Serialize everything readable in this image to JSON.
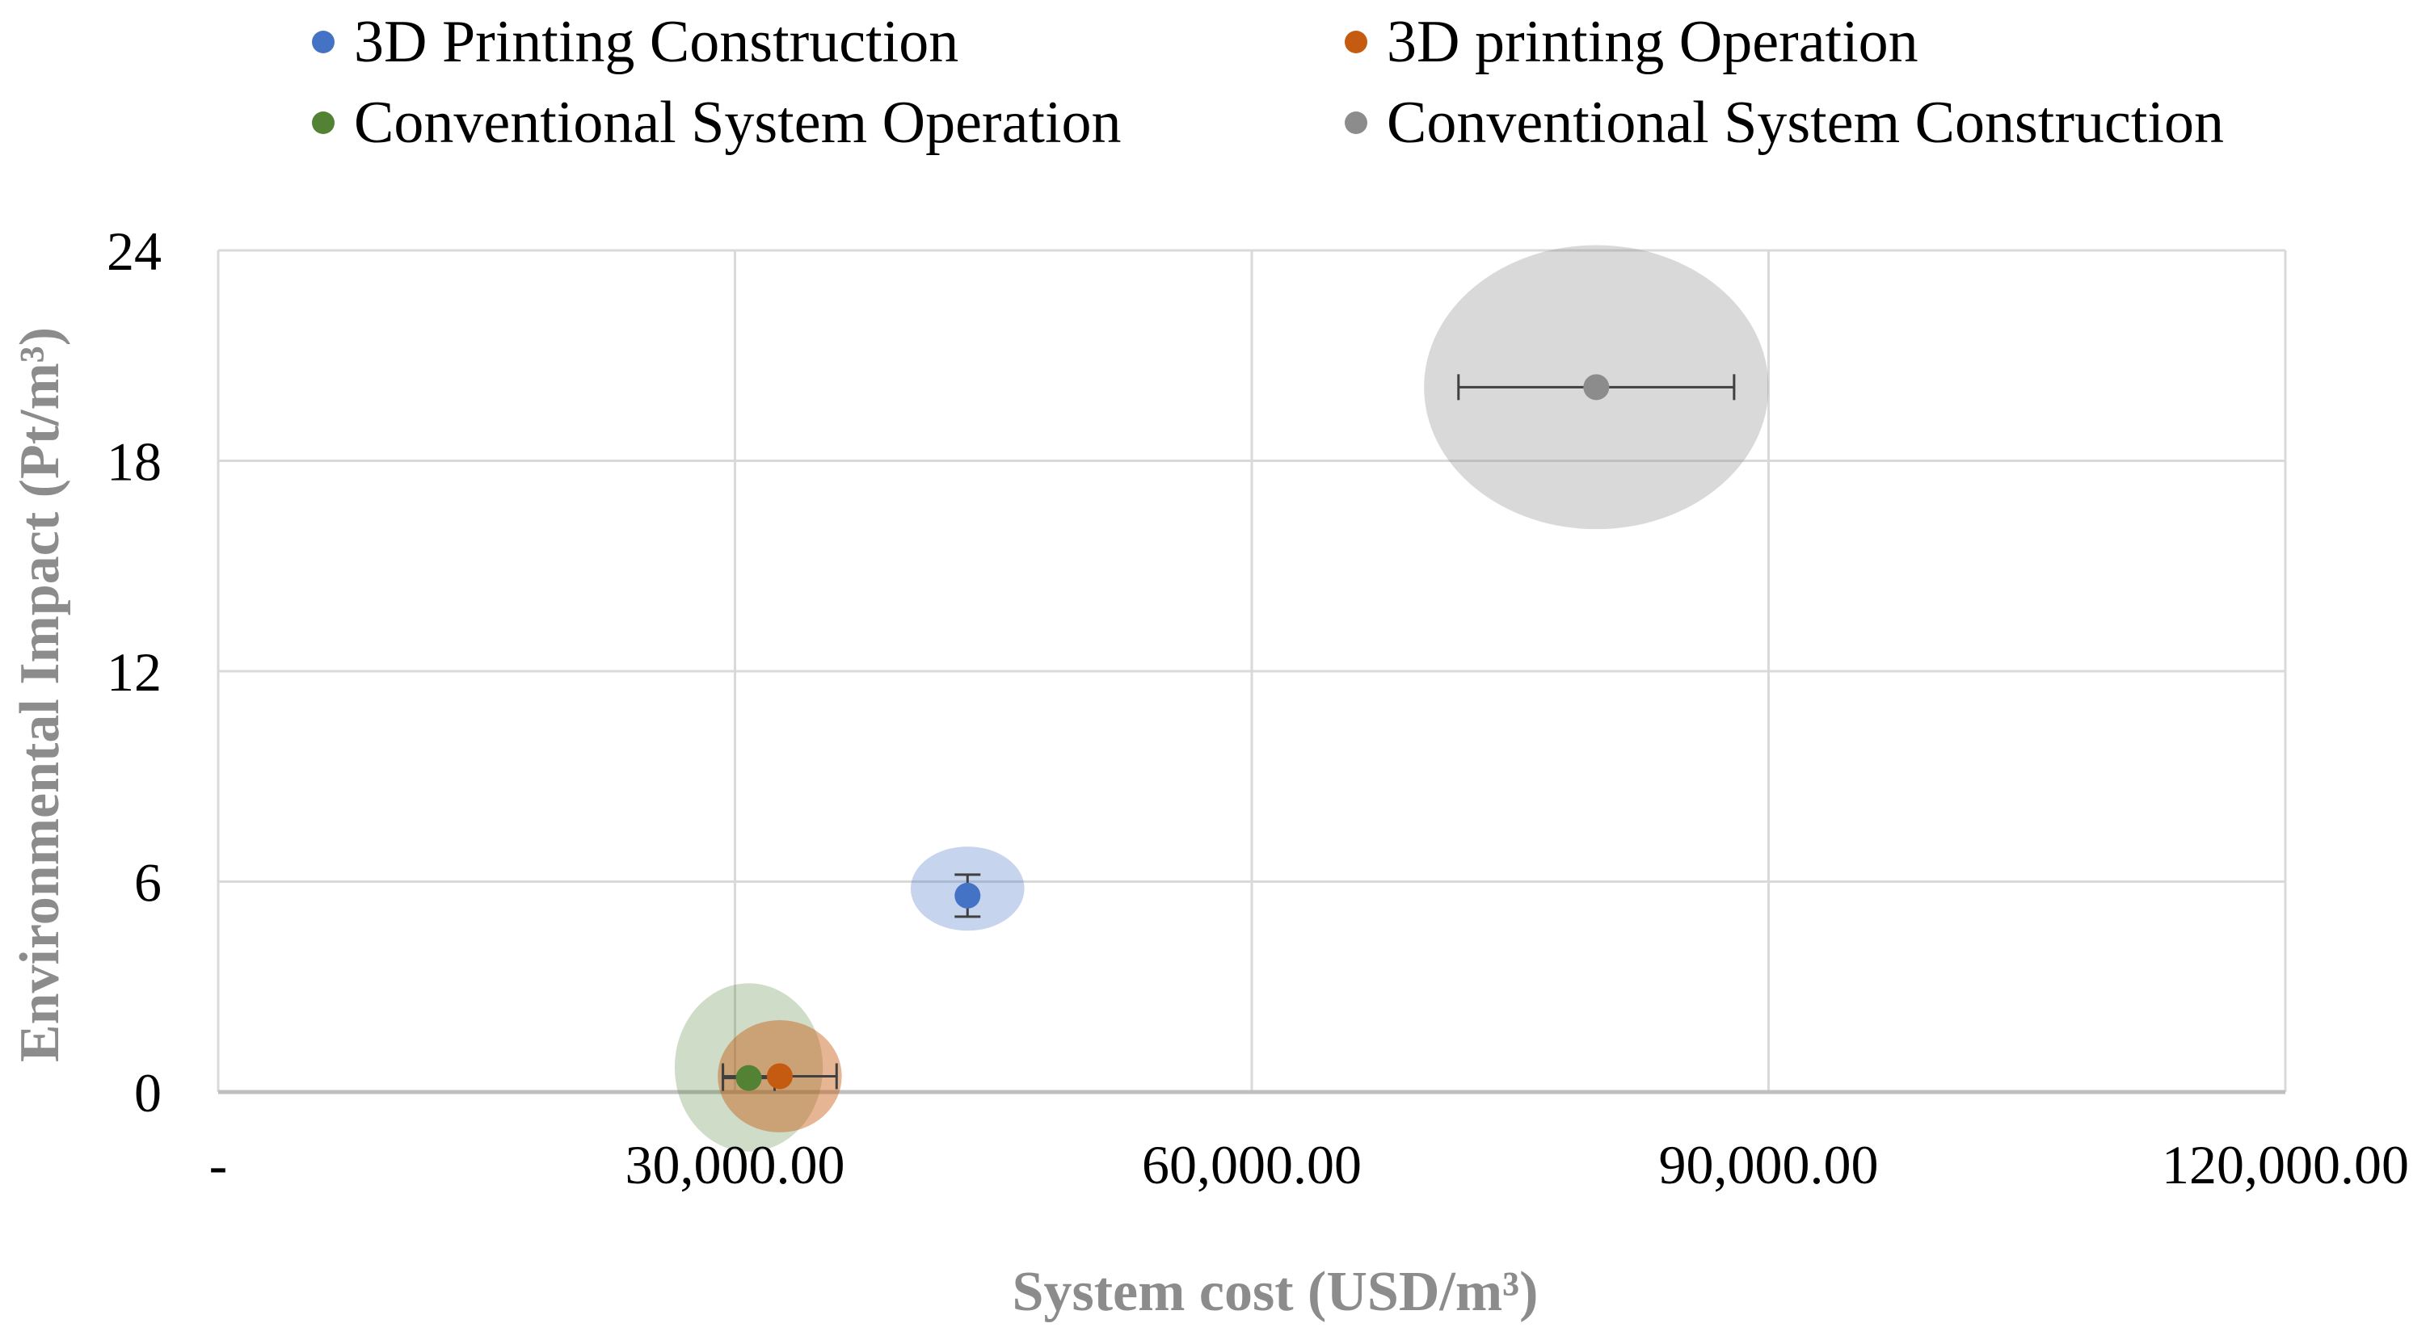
{
  "chart_data": {
    "type": "scatter",
    "title": "",
    "xlabel": "System cost (USD/m³)",
    "ylabel": "Environmental Impact (Pt/m³)",
    "xlim": [
      0,
      120000
    ],
    "ylim": [
      0,
      24
    ],
    "grid": true,
    "legend_position": "top",
    "x_ticks": [
      0,
      30000,
      60000,
      90000,
      120000
    ],
    "x_tick_labels": [
      "-",
      "30,000.00",
      "60,000.00",
      "90,000.00",
      "120,000.00"
    ],
    "y_ticks": [
      0,
      6,
      12,
      18,
      24
    ],
    "y_tick_labels": [
      "0",
      "6",
      "12",
      "18",
      "24"
    ],
    "series": [
      {
        "name": "3D Printing Construction",
        "color": "#4472c4",
        "x": 43500,
        "y": 5.6,
        "x_error": [
          0,
          0
        ],
        "y_error": [
          0.6,
          0.6
        ],
        "bubble_rx": 3300,
        "bubble_ry": 1.2,
        "bubble_cy": 5.8
      },
      {
        "name": "3D printing Operation",
        "color": "#c55a11",
        "x": 32600,
        "y": 0.45,
        "x_error": [
          3300,
          3300
        ],
        "y_error": [
          0,
          0
        ],
        "bubble_rx": 3600,
        "bubble_ry": 1.6,
        "bubble_cy": 0.45
      },
      {
        "name": "Conventional System Operation",
        "color": "#548235",
        "x": 30800,
        "y": 0.4,
        "x_error": [
          1500,
          1500
        ],
        "y_error": [
          0,
          0
        ],
        "bubble_rx": 4300,
        "bubble_ry": 2.4,
        "bubble_cy": 0.7
      },
      {
        "name": "Conventional System Construction",
        "color": "#8c8c8c",
        "x": 80000,
        "y": 20.1,
        "x_error": [
          8000,
          8000
        ],
        "y_error": [
          0,
          0
        ],
        "bubble_rx": 10000,
        "bubble_ry": 4.05,
        "bubble_cy": 20.1
      }
    ]
  }
}
